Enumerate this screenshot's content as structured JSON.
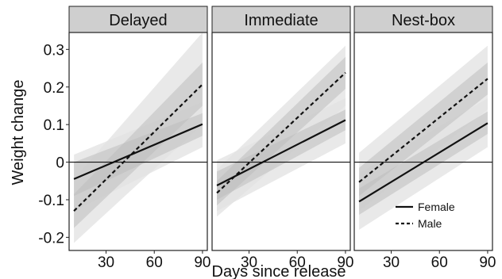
{
  "chart_data": {
    "type": "line",
    "xlabel": "Days since release",
    "ylabel": "Weight change",
    "xlim": [
      7,
      93
    ],
    "ylim": [
      -0.235,
      0.345
    ],
    "xticks": [
      30,
      60,
      90
    ],
    "yticks": [
      0.3,
      0.2,
      0.1,
      0,
      -0.1,
      -0.2
    ],
    "ytick_labels": [
      "0.3",
      "0.2",
      "0.1",
      "0",
      "-0.1",
      "-0.2"
    ],
    "grid": false,
    "zero_reference_line": true,
    "ribbon_colors": {
      "outer": "#e2e2e2",
      "inner": "#bdbdbd"
    },
    "strip_color": "#cfcfcf",
    "legend": {
      "placement": "bottom-right of Nest-box panel",
      "entries": [
        {
          "name": "Female",
          "line": "solid"
        },
        {
          "name": "Male",
          "line": "dashed"
        }
      ]
    },
    "panels": [
      {
        "title": "Delayed",
        "series": [
          {
            "name": "Female",
            "line": "solid",
            "x": [
              10,
              90
            ],
            "y": [
              -0.045,
              0.101
            ],
            "ci_outer": {
              "lower": [
                -0.13,
                0.04
              ],
              "upper": [
                0.02,
                0.16
              ]
            },
            "ci_inner": {
              "lower": [
                -0.09,
                0.07
              ],
              "upper": [
                0.0,
                0.13
              ]
            }
          },
          {
            "name": "Male",
            "line": "dashed",
            "x": [
              10,
              90
            ],
            "y": [
              -0.13,
              0.207
            ],
            "ci_outer": {
              "lower": [
                -0.215,
                0.1
              ],
              "upper": [
                -0.045,
                0.345
              ]
            },
            "ci_inner": {
              "lower": [
                -0.175,
                0.15
              ],
              "upper": [
                -0.085,
                0.265
              ]
            }
          }
        ]
      },
      {
        "title": "Immediate",
        "series": [
          {
            "name": "Female",
            "line": "solid",
            "x": [
              10,
              90
            ],
            "y": [
              -0.062,
              0.112
            ],
            "ci_outer": {
              "lower": [
                -0.13,
                0.05
              ],
              "upper": [
                0.005,
                0.17
              ]
            },
            "ci_inner": {
              "lower": [
                -0.1,
                0.085
              ],
              "upper": [
                -0.025,
                0.14
              ]
            }
          },
          {
            "name": "Male",
            "line": "dashed",
            "x": [
              10,
              90
            ],
            "y": [
              -0.082,
              0.238
            ],
            "ci_outer": {
              "lower": [
                -0.145,
                0.15
              ],
              "upper": [
                -0.02,
                0.31
              ]
            },
            "ci_inner": {
              "lower": [
                -0.115,
                0.195
              ],
              "upper": [
                -0.05,
                0.28
              ]
            }
          }
        ]
      },
      {
        "title": "Nest-box",
        "series": [
          {
            "name": "Female",
            "line": "solid",
            "x": [
              10,
              90
            ],
            "y": [
              -0.105,
              0.104
            ],
            "ci_outer": {
              "lower": [
                -0.18,
                0.04
              ],
              "upper": [
                -0.03,
                0.17
              ]
            },
            "ci_inner": {
              "lower": [
                -0.14,
                0.075
              ],
              "upper": [
                -0.07,
                0.135
              ]
            }
          },
          {
            "name": "Male",
            "line": "dashed",
            "x": [
              10,
              90
            ],
            "y": [
              -0.053,
              0.222
            ],
            "ci_outer": {
              "lower": [
                -0.13,
                0.14
              ],
              "upper": [
                0.025,
                0.31
              ]
            },
            "ci_inner": {
              "lower": [
                -0.09,
                0.18
              ],
              "upper": [
                -0.015,
                0.265
              ]
            }
          }
        ]
      }
    ]
  }
}
